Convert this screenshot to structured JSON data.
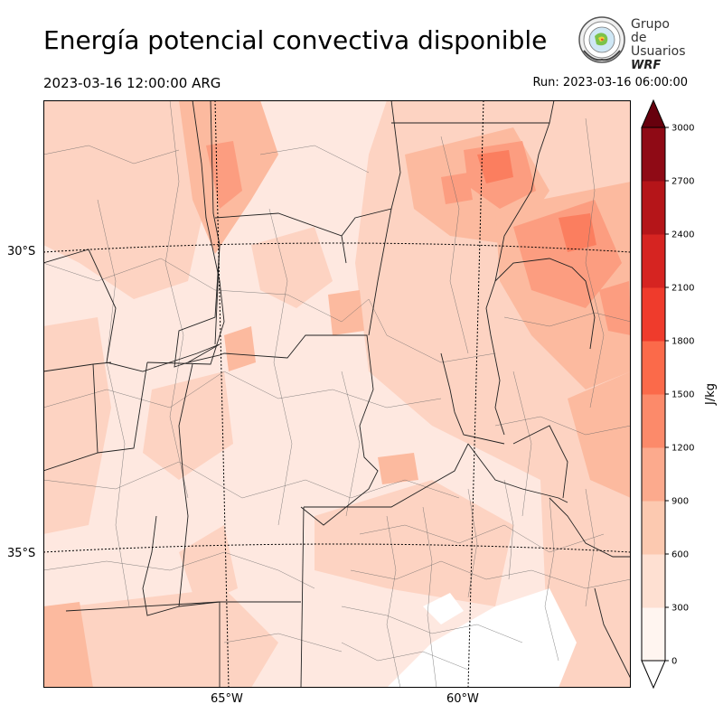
{
  "header": {
    "title": "Energía potencial convectiva disponible",
    "valid_time": "2023-03-16 12:00:00 ARG",
    "run_time": "Run: 2023-03-16 06:00:00"
  },
  "logo": {
    "line1": "Grupo de",
    "line2": "Usuarios",
    "line3": "WRF"
  },
  "map": {
    "lat_labels": [
      "30°S",
      "35°S"
    ],
    "lon_labels": [
      "65°W",
      "60°W"
    ],
    "colors": {
      "c0": "#fee8e0",
      "c300": "#fdd3c2",
      "c600": "#fcba9f",
      "c900": "#fc9d80",
      "c1200": "#fb7e5f",
      "c1500": "#f5573f",
      "c1800": "#ec382a",
      "c2100": "#d11f20",
      "c2400": "#b01419",
      "c2700": "#7d0a12"
    }
  },
  "colorbar": {
    "label": "J/kg",
    "ticks": [
      "0",
      "300",
      "600",
      "900",
      "1200",
      "1500",
      "1800",
      "2100",
      "2400",
      "2700",
      "3000"
    ],
    "colors": [
      "#fff5f0",
      "#fee0d2",
      "#fcc9b0",
      "#fcaa8d",
      "#fc8a6a",
      "#fb6a4a",
      "#ef3b2c",
      "#d62421",
      "#b51519",
      "#8f0a15"
    ],
    "over_color": "#67000d"
  }
}
